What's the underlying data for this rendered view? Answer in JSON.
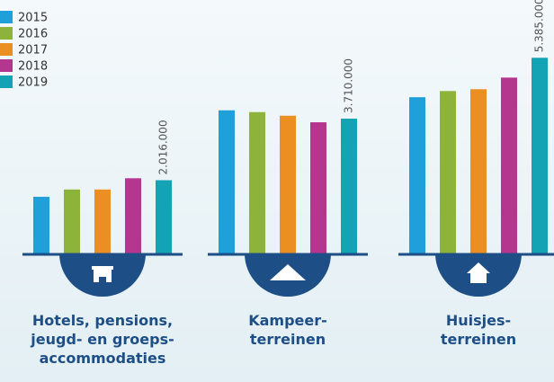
{
  "chart_data": {
    "type": "bar",
    "categories": [
      [
        "Hotels, pensions,",
        "jeugd- en groeps-",
        "accommodaties"
      ],
      [
        "Kampeer-",
        "terreinen"
      ],
      [
        "Huisjes-",
        "terreinen"
      ]
    ],
    "series": [
      {
        "name": "2015",
        "color": "#1fa0db",
        "values": [
          1560000,
          3940000,
          4300000
        ]
      },
      {
        "name": "2016",
        "color": "#8db33a",
        "values": [
          1760000,
          3890000,
          4470000
        ]
      },
      {
        "name": "2017",
        "color": "#ec8f22",
        "values": [
          1760000,
          3790000,
          4520000
        ]
      },
      {
        "name": "2018",
        "color": "#b4368f",
        "values": [
          2070000,
          3610000,
          4840000
        ]
      },
      {
        "name": "2019",
        "color": "#13a3b4",
        "values": [
          2016000,
          3710000,
          5385000
        ],
        "value_labels": [
          "2.016.000",
          "3.710.000",
          "5.385.000"
        ]
      }
    ],
    "ylim": [
      0,
      7000000
    ]
  }
}
